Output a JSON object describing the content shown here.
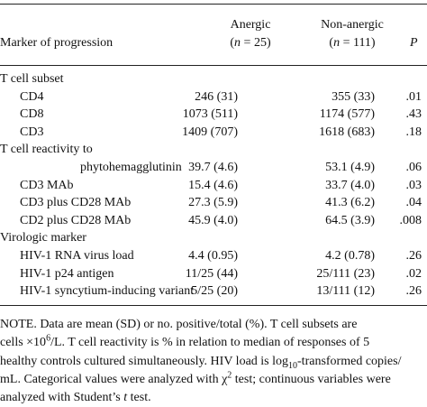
{
  "header": {
    "col_marker": "Marker of progression",
    "col_anergic_title": "Anergic",
    "col_anergic_n": "(n = 25)",
    "col_nonanergic_title": "Non-anergic",
    "col_nonanergic_n": "(n = 111)",
    "col_p": "P"
  },
  "rows": [
    {
      "label": "T cell subset",
      "anergic": "",
      "nonanergic": "",
      "p": "",
      "kind": "section"
    },
    {
      "label": "CD4",
      "anergic": "246 (31)",
      "nonanergic": "355 (33)",
      "p": ".01",
      "kind": "item"
    },
    {
      "label": "CD8",
      "anergic": "1073 (511)",
      "nonanergic": "1174 (577)",
      "p": ".43",
      "kind": "item"
    },
    {
      "label": "CD3",
      "anergic": "1409 (707)",
      "nonanergic": "1618 (683)",
      "p": ".18",
      "kind": "item"
    },
    {
      "label": "T cell reactivity to",
      "anergic": "",
      "nonanergic": "",
      "p": "",
      "kind": "section"
    },
    {
      "label": "phytohemagglutinin",
      "anergic": "39.7 (4.6)",
      "nonanergic": "53.1 (4.9)",
      "p": ".06",
      "kind": "subitem"
    },
    {
      "label": "CD3 MAb",
      "anergic": "15.4 (4.6)",
      "nonanergic": "33.7 (4.0)",
      "p": ".03",
      "kind": "item"
    },
    {
      "label": "CD3 plus CD28 MAb",
      "anergic": "27.3 (5.9)",
      "nonanergic": "41.3 (6.2)",
      "p": ".04",
      "kind": "item"
    },
    {
      "label": "CD2 plus CD28 MAb",
      "anergic": "45.9 (4.0)",
      "nonanergic": "64.5 (3.9)",
      "p": ".008",
      "kind": "item"
    },
    {
      "label": "Virologic marker",
      "anergic": "",
      "nonanergic": "",
      "p": "",
      "kind": "section"
    },
    {
      "label": "HIV-1 RNA virus load",
      "anergic": "4.4 (0.95)",
      "nonanergic": "4.2 (0.78)",
      "p": ".26",
      "kind": "item"
    },
    {
      "label": "HIV-1 p24 antigen",
      "anergic": "11/25 (44)",
      "nonanergic": "25/111 (23)",
      "p": ".02",
      "kind": "item"
    },
    {
      "label": "HIV-1 syncytium-inducing variant",
      "anergic": "5/25 (20)",
      "nonanergic": "13/111 (12)",
      "p": ".26",
      "kind": "item"
    }
  ],
  "note": {
    "line1": "NOTE.   Data are mean (SD) or no. positive/total (%). T cell subsets are",
    "line2_a": "cells ×10",
    "line2_sup": "6",
    "line2_b": "/L. T cell reactivity is % in relation to median of responses of 5",
    "line3": "healthy controls cultured simultaneously. HIV load is log",
    "line3_sub": "10",
    "line3_b": "-transformed copies/",
    "line4_a": "mL. Categorical values were analyzed with χ",
    "line4_sup": "2",
    "line4_b": " test; continuous variables were",
    "line5_a": "analyzed with Student’s ",
    "line5_t": "t",
    "line5_b": " test."
  }
}
